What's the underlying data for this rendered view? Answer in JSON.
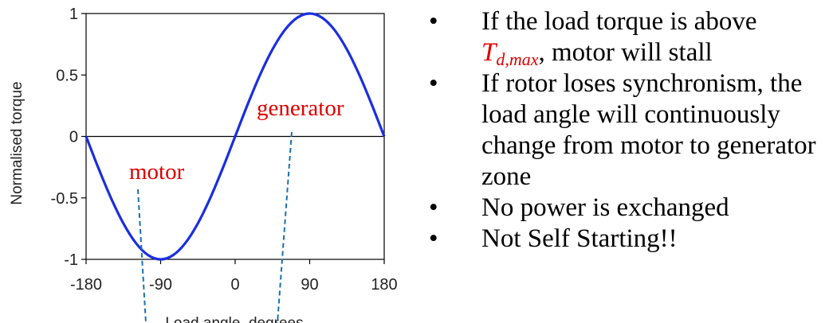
{
  "chart_data": {
    "type": "line",
    "xlabel": "Load angle, degrees",
    "ylabel": "Normalised torque",
    "xlim": [
      -180,
      180
    ],
    "ylim": [
      -1,
      1
    ],
    "xticks": [
      -180,
      -90,
      0,
      90,
      180
    ],
    "xtick_labels": [
      "-180",
      "-90",
      "0",
      "90",
      "180"
    ],
    "yticks": [
      1,
      0.5,
      0,
      -0.5,
      -1
    ],
    "ytick_labels": [
      "1",
      "0.5",
      "0",
      "-0.5",
      "-1"
    ],
    "series": [
      {
        "color": "#1a2ee0",
        "x": [
          -180,
          -165,
          -150,
          -135,
          -120,
          -105,
          -90,
          -75,
          -60,
          -45,
          -30,
          -15,
          0,
          15,
          30,
          45,
          60,
          75,
          90,
          105,
          120,
          135,
          150,
          165,
          180
        ],
        "y": [
          0,
          -0.259,
          -0.5,
          -0.707,
          -0.866,
          -0.966,
          -1,
          -0.966,
          -0.866,
          -0.707,
          -0.5,
          -0.259,
          0,
          0.259,
          0.5,
          0.707,
          0.866,
          0.966,
          1,
          0.966,
          0.866,
          0.707,
          0.5,
          0.259,
          0
        ]
      }
    ],
    "zero_line": true,
    "grid": false,
    "annotations": [
      {
        "text": "motor",
        "color": "#dd0000"
      },
      {
        "text": "generator",
        "color": "#dd0000"
      }
    ],
    "line_color": "#1a2ee0",
    "annotation_color": "#dd0000",
    "leader_color": "#1a6fb0"
  },
  "bullets": {
    "items": [
      {
        "prefix": "If the load torque is above",
        "symbol": "T",
        "symbol_sub": "d,max",
        "suffix": ", motor will stall",
        "symbol_color": "#dd0000"
      },
      {
        "text": "If rotor loses synchronism, the load angle will continuously change from motor to generator zone"
      },
      {
        "text": "No power is exchanged"
      },
      {
        "text": "Not Self Starting!!"
      }
    ],
    "marker": "•"
  }
}
